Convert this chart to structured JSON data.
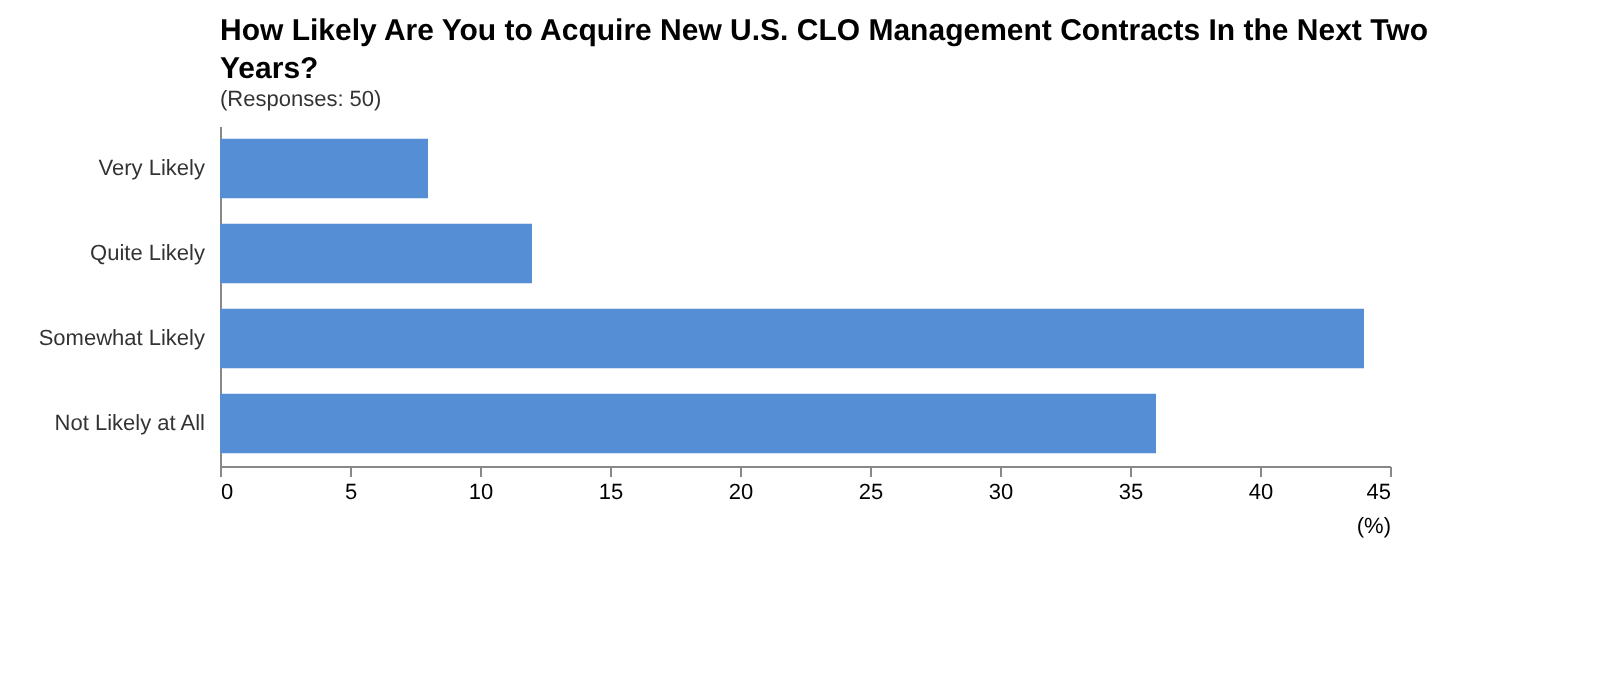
{
  "chart_data": {
    "type": "bar",
    "orientation": "horizontal",
    "title": "How Likely Are You to Acquire New U.S. CLO Management Contracts In the Next Two Years?",
    "subtitle": "(Responses: 50)",
    "xlabel": "(%)",
    "categories": [
      "Very Likely",
      "Quite Likely",
      "Somewhat Likely",
      "Not Likely at All"
    ],
    "values": [
      8,
      12,
      44,
      36
    ],
    "color": "#558ed5",
    "xlim": [
      0,
      45
    ],
    "xticks": [
      0,
      5,
      10,
      15,
      20,
      25,
      30,
      35,
      40,
      45
    ],
    "grid": false
  }
}
